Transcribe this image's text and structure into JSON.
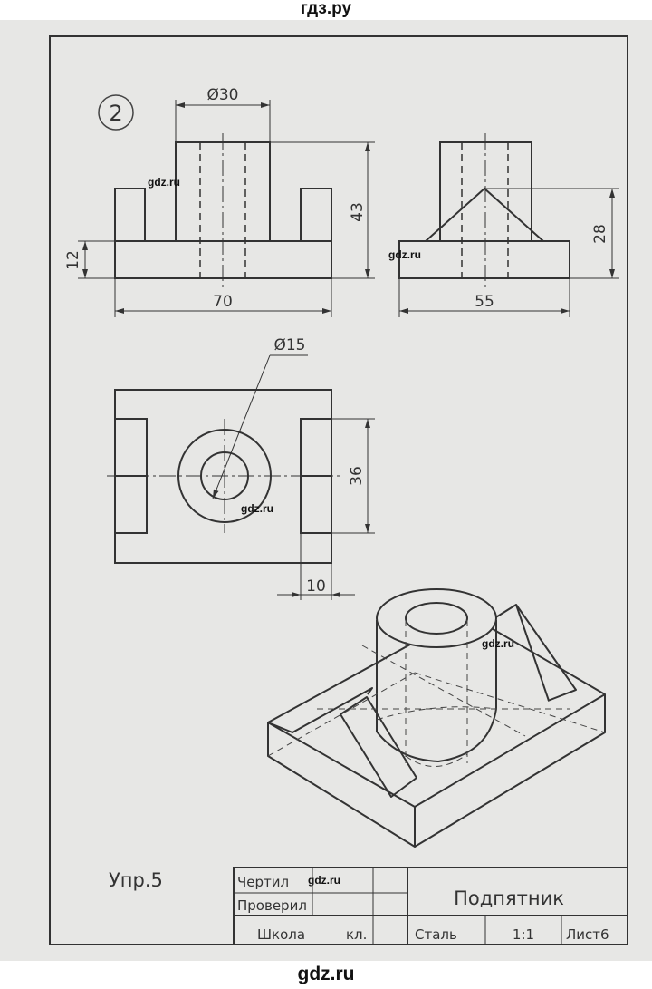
{
  "site_header": "гдз.ру",
  "site_footer": "gdz.ru",
  "watermark": "gdz.ru",
  "exercise_number": "2",
  "dimensions": {
    "top_diameter": "Ø30",
    "base_height": "12",
    "total_height": "43",
    "base_length": "70",
    "side_width": "55",
    "rib_height": "28",
    "hole_diameter": "Ø15",
    "plan_depth": "36",
    "lug_width": "10"
  },
  "exercise_label": "Упр.5",
  "title_block": {
    "drew_label": "Чертил",
    "checked_label": "Проверил",
    "part_name": "Подпятник",
    "school_label": "Школа",
    "class_label": "кл.",
    "material": "Сталь",
    "scale": "1:1",
    "sheet": "Лист6"
  }
}
